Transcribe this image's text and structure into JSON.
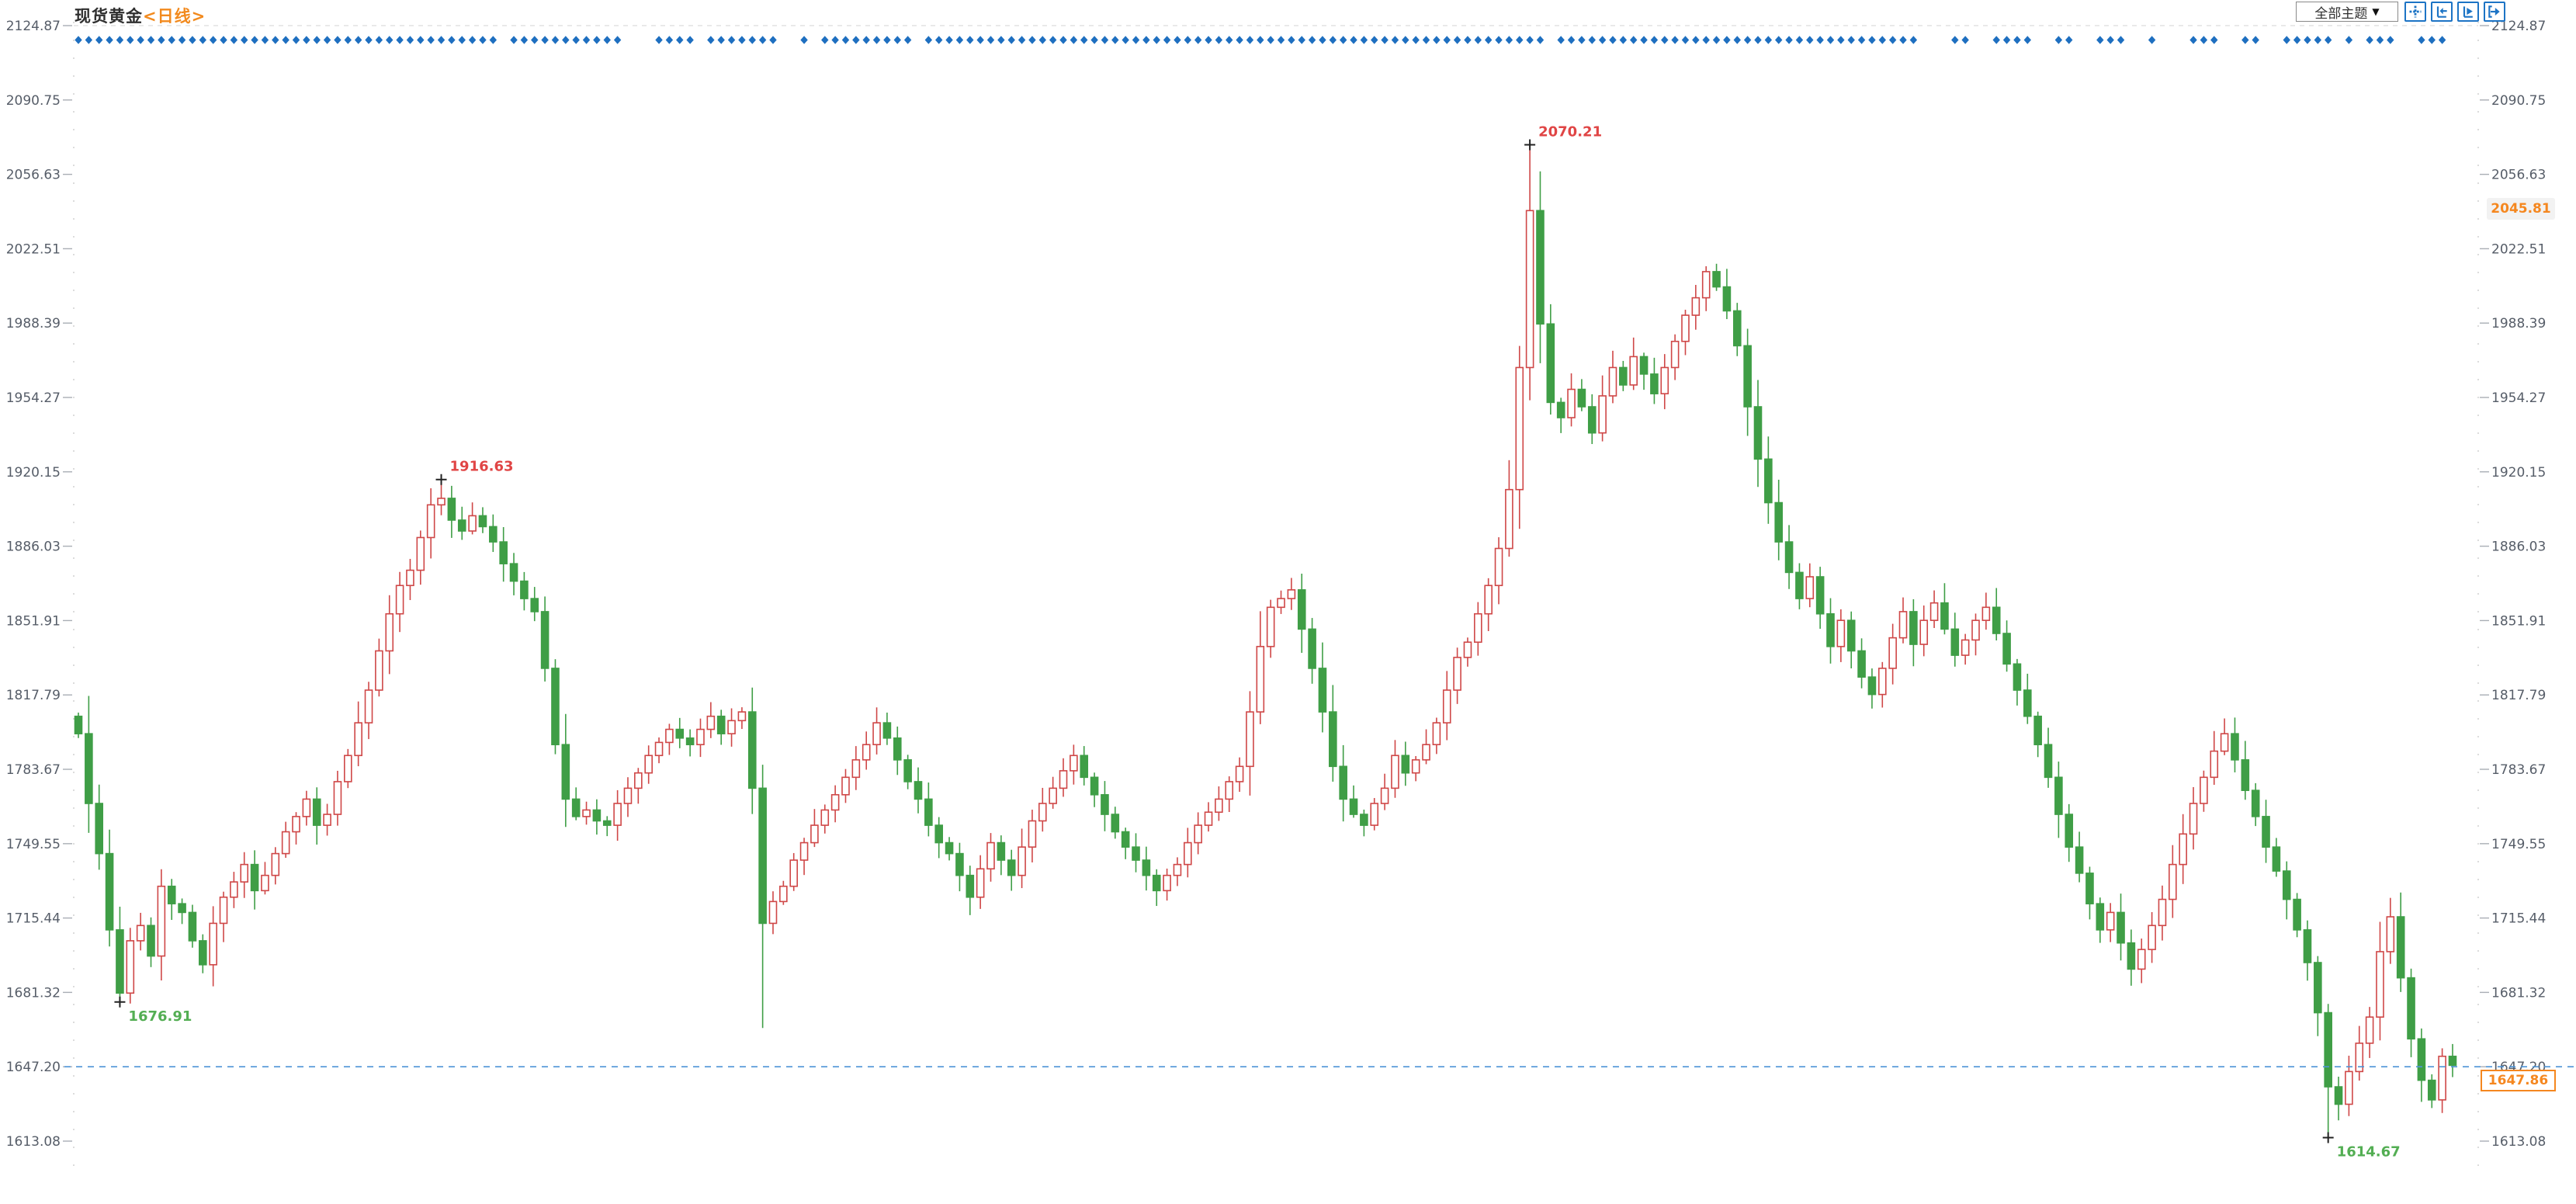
{
  "header": {
    "title": "现货黄金",
    "period": "<日线>"
  },
  "toolbar": {
    "dropdown_label": "全部主题",
    "dropdown_arrow": "▼",
    "icons": [
      {
        "name": "pan-crosshair-icon"
      },
      {
        "name": "scroll-to-start-icon"
      },
      {
        "name": "play-forward-icon"
      },
      {
        "name": "jump-to-latest-icon"
      }
    ]
  },
  "price_scale": {
    "tick_labels": [
      "2124.87",
      "2090.75",
      "2056.63",
      "2022.51",
      "1988.39",
      "1954.27",
      "1920.15",
      "1886.03",
      "1851.91",
      "1817.79",
      "1783.67",
      "1749.55",
      "1715.44",
      "1681.32",
      "1647.20",
      "1613.08"
    ],
    "ma_label": "2045.81",
    "last_price": "1647.86",
    "dashed_line_value": "1647.20"
  },
  "colors": {
    "up_candle": "#cf4747",
    "down_candle": "#3f9e46",
    "event_dot": "#1e6fc0",
    "current_price_line": "#4d94d6",
    "axis_text": "#565d68",
    "annotation_high": "#e04545",
    "annotation_low": "#53ae53",
    "accent_orange": "#f5871f",
    "toolbar_blue": "#1d74c5"
  },
  "chart_data": {
    "type": "candlestick",
    "title": "现货黄金",
    "interval": "日线",
    "y_axis": {
      "min": 1613.08,
      "max": 2124.87,
      "tick_step": 34.12,
      "grid": "off",
      "side": "both"
    },
    "annotations": [
      {
        "candle_index": 140,
        "price": 2070.21,
        "label": "2070.21",
        "kind": "high"
      },
      {
        "candle_index": 35,
        "price": 1916.63,
        "label": "1916.63",
        "kind": "high"
      },
      {
        "candle_index": 4,
        "price": 1676.91,
        "label": "1676.91",
        "kind": "low"
      },
      {
        "candle_index": 217,
        "price": 1614.67,
        "label": "1614.67",
        "kind": "low"
      }
    ],
    "last_close": 1647.86,
    "closes": [
      1800,
      1768,
      1745,
      1710,
      1681,
      1705,
      1712,
      1698,
      1730,
      1722,
      1718,
      1705,
      1694,
      1713,
      1725,
      1732,
      1740,
      1728,
      1735,
      1745,
      1755,
      1762,
      1770,
      1758,
      1763,
      1778,
      1790,
      1805,
      1820,
      1838,
      1855,
      1868,
      1875,
      1890,
      1905,
      1908,
      1898,
      1893,
      1900,
      1895,
      1888,
      1878,
      1870,
      1862,
      1856,
      1830,
      1795,
      1770,
      1762,
      1765,
      1760,
      1758,
      1768,
      1775,
      1782,
      1790,
      1796,
      1802,
      1798,
      1795,
      1802,
      1808,
      1800,
      1806,
      1810,
      1775,
      1713,
      1723,
      1730,
      1742,
      1750,
      1758,
      1765,
      1772,
      1780,
      1788,
      1795,
      1805,
      1798,
      1788,
      1778,
      1770,
      1758,
      1750,
      1745,
      1735,
      1725,
      1738,
      1750,
      1742,
      1735,
      1748,
      1760,
      1768,
      1775,
      1783,
      1790,
      1780,
      1772,
      1763,
      1755,
      1748,
      1742,
      1735,
      1728,
      1735,
      1740,
      1750,
      1758,
      1764,
      1770,
      1778,
      1785,
      1810,
      1840,
      1858,
      1862,
      1866,
      1848,
      1830,
      1810,
      1785,
      1770,
      1763,
      1758,
      1768,
      1775,
      1790,
      1782,
      1788,
      1795,
      1805,
      1820,
      1835,
      1842,
      1855,
      1868,
      1885,
      1912,
      1968,
      2040,
      1988,
      1952,
      1945,
      1958,
      1950,
      1938,
      1955,
      1968,
      1960,
      1973,
      1965,
      1956,
      1968,
      1980,
      1992,
      2000,
      2012,
      2005,
      1994,
      1978,
      1950,
      1926,
      1906,
      1888,
      1874,
      1862,
      1872,
      1855,
      1840,
      1852,
      1838,
      1826,
      1818,
      1830,
      1844,
      1856,
      1841,
      1852,
      1860,
      1848,
      1836,
      1843,
      1852,
      1858,
      1846,
      1832,
      1820,
      1808,
      1795,
      1780,
      1763,
      1748,
      1736,
      1722,
      1710,
      1718,
      1704,
      1692,
      1701,
      1712,
      1724,
      1740,
      1754,
      1768,
      1780,
      1792,
      1800,
      1788,
      1774,
      1762,
      1748,
      1737,
      1724,
      1710,
      1695,
      1672,
      1638,
      1630,
      1645,
      1658,
      1670,
      1700,
      1716,
      1688,
      1660,
      1641,
      1632,
      1652,
      1647.86
    ],
    "overrides": {
      "4": {
        "low": 1676.91
      },
      "35": {
        "high": 1916.63
      },
      "66": {
        "low": 1665
      },
      "140": {
        "high": 2070.21
      },
      "217": {
        "low": 1614.67
      }
    },
    "event_dot_segments": [
      [
        0,
        40
      ],
      [
        42,
        52
      ],
      [
        56,
        59
      ],
      [
        61,
        67
      ],
      [
        70,
        70
      ],
      [
        72,
        80
      ],
      [
        82,
        141
      ],
      [
        143,
        177
      ],
      [
        181,
        182
      ],
      [
        185,
        188
      ],
      [
        191,
        192
      ],
      [
        195,
        197
      ],
      [
        200,
        200
      ],
      [
        204,
        206
      ],
      [
        209,
        210
      ],
      [
        213,
        217
      ],
      [
        219,
        219
      ],
      [
        221,
        223
      ],
      [
        226,
        228
      ]
    ],
    "legend": "none"
  }
}
